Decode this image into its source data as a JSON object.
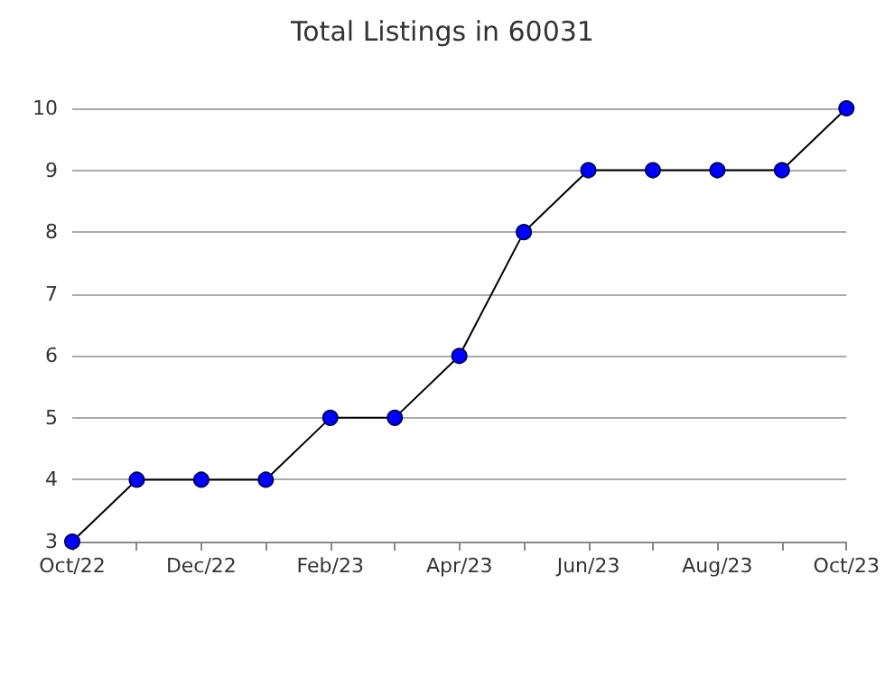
{
  "chart_data": {
    "type": "line",
    "title": "Total Listings in 60031",
    "categories": [
      "Oct/22",
      null,
      "Dec/22",
      null,
      "Feb/23",
      null,
      "Apr/23",
      null,
      "Jun/23",
      null,
      "Aug/23",
      null,
      "Oct/23"
    ],
    "series": [
      {
        "color": "#000000",
        "values": [
          3,
          4,
          4,
          4,
          5,
          5,
          6,
          8,
          9,
          9,
          9,
          9,
          10
        ]
      }
    ],
    "ylim": [
      3,
      10
    ],
    "yticks": [
      3,
      4,
      5,
      6,
      7,
      8,
      9,
      10
    ],
    "grid": "y",
    "marker": "circle",
    "line_style": "solid"
  }
}
